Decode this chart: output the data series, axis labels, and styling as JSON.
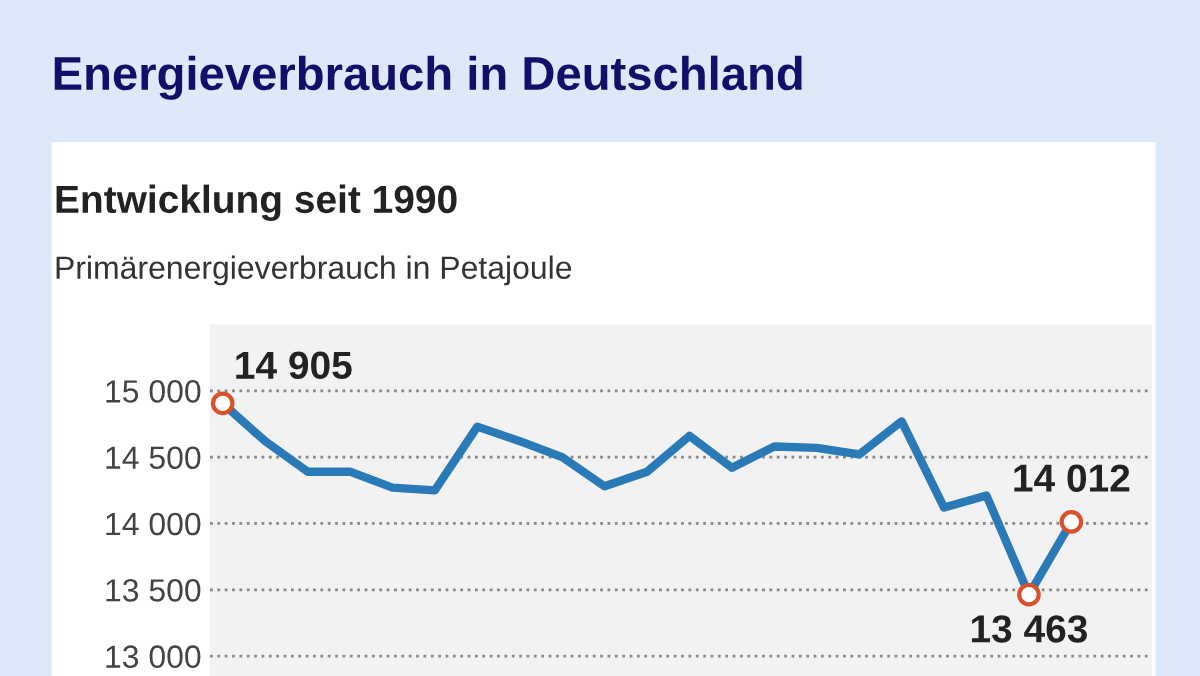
{
  "chart_data": {
    "type": "line",
    "title": "Energieverbrauch in Deutschland",
    "subtitle": "Entwicklung seit 1990",
    "ylabel": "Primärenergieverbrauch in Petajoule",
    "categories": [
      null,
      null,
      null,
      null,
      null,
      null,
      null,
      null,
      null,
      null,
      null,
      null,
      null,
      null,
      null,
      null,
      null,
      null,
      null,
      null,
      null
    ],
    "series": [
      {
        "color": "#2a7ab8",
        "values": [
          14905,
          14620,
          14390,
          14390,
          14270,
          14250,
          14730,
          14620,
          14500,
          14280,
          14390,
          14660,
          14420,
          14580,
          14570,
          14520,
          14770,
          14120,
          14210,
          13463,
          14012
        ],
        "value_labels": [
          "14 905",
          null,
          null,
          null,
          null,
          null,
          null,
          null,
          null,
          null,
          null,
          null,
          null,
          null,
          null,
          null,
          null,
          null,
          null,
          "13 463",
          "14 012"
        ]
      }
    ],
    "ylim": [
      12850,
      15500
    ],
    "yticks": [
      {
        "value": 13000,
        "label": "13 000"
      },
      {
        "value": 13500,
        "label": "13 500"
      },
      {
        "value": 14000,
        "label": "14 000"
      },
      {
        "value": 14500,
        "label": "14 500"
      },
      {
        "value": 15000,
        "label": "15 000"
      }
    ],
    "grid": "y",
    "line_style": "solid"
  }
}
